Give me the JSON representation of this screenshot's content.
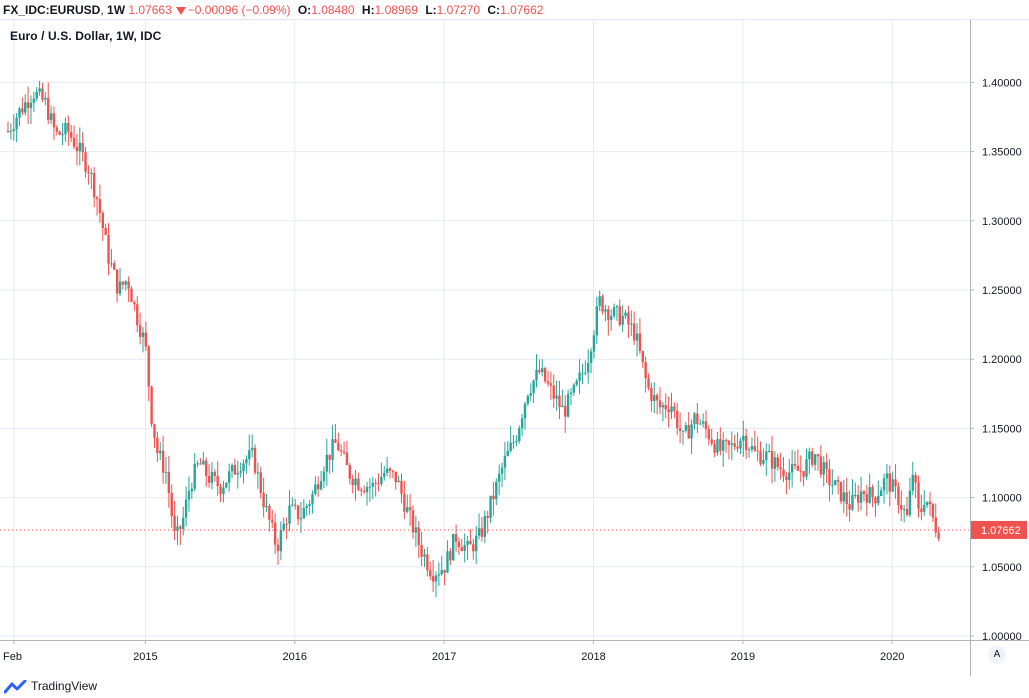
{
  "header": {
    "symbol": "FX_IDC:EURUSD",
    "interval": "1W",
    "last": "1.07663",
    "change": "−0.00096 (−0.09%)",
    "open_label": "O:",
    "open": "1.08480",
    "high_label": "H:",
    "high": "1.08969",
    "low_label": "L:",
    "low": "1.07270",
    "close_label": "C:",
    "close": "1.07662"
  },
  "footer": {
    "brand": "TradingView"
  },
  "auto_button": "A",
  "colors": {
    "up": "#26a69a",
    "down": "#ef5350",
    "grid": "#e6eaf0",
    "axis_text": "#131722"
  },
  "chart_data": {
    "type": "candlestick",
    "title": "Euro / U.S. Dollar, 1W, IDC",
    "ylim": [
      1.0,
      1.44
    ],
    "y_ticks": [
      "1.00000",
      "1.05000",
      "1.10000",
      "1.15000",
      "1.20000",
      "1.25000",
      "1.30000",
      "1.35000",
      "1.40000"
    ],
    "x_ticks": [
      "Feb",
      "2015",
      "2016",
      "2017",
      "2018",
      "2019",
      "2020"
    ],
    "x_tick_years": [
      2014.12,
      2015.0,
      2016.0,
      2017.0,
      2018.0,
      2019.0,
      2020.0
    ],
    "x_range": [
      2014.08,
      2020.32
    ],
    "last_price_label": "1.07662",
    "last_price": 1.07662,
    "weekly_close_path": [
      [
        2014.08,
        1.365
      ],
      [
        2014.15,
        1.378
      ],
      [
        2014.25,
        1.393
      ],
      [
        2014.33,
        1.385
      ],
      [
        2014.4,
        1.362
      ],
      [
        2014.48,
        1.365
      ],
      [
        2014.55,
        1.352
      ],
      [
        2014.62,
        1.338
      ],
      [
        2014.68,
        1.315
      ],
      [
        2014.75,
        1.275
      ],
      [
        2014.82,
        1.25
      ],
      [
        2014.88,
        1.258
      ],
      [
        2014.94,
        1.232
      ],
      [
        2015.0,
        1.21
      ],
      [
        2015.04,
        1.16
      ],
      [
        2015.08,
        1.133
      ],
      [
        2015.14,
        1.118
      ],
      [
        2015.2,
        1.068
      ],
      [
        2015.25,
        1.083
      ],
      [
        2015.3,
        1.11
      ],
      [
        2015.36,
        1.125
      ],
      [
        2015.42,
        1.115
      ],
      [
        2015.5,
        1.108
      ],
      [
        2015.58,
        1.118
      ],
      [
        2015.64,
        1.126
      ],
      [
        2015.72,
        1.13
      ],
      [
        2015.8,
        1.094
      ],
      [
        2015.88,
        1.064
      ],
      [
        2015.96,
        1.091
      ],
      [
        2016.04,
        1.087
      ],
      [
        2016.12,
        1.102
      ],
      [
        2016.2,
        1.126
      ],
      [
        2016.28,
        1.14
      ],
      [
        2016.36,
        1.118
      ],
      [
        2016.44,
        1.11
      ],
      [
        2016.52,
        1.108
      ],
      [
        2016.6,
        1.118
      ],
      [
        2016.68,
        1.114
      ],
      [
        2016.76,
        1.088
      ],
      [
        2016.84,
        1.064
      ],
      [
        2016.92,
        1.046
      ],
      [
        2017.0,
        1.05
      ],
      [
        2017.08,
        1.072
      ],
      [
        2017.16,
        1.062
      ],
      [
        2017.24,
        1.072
      ],
      [
        2017.32,
        1.098
      ],
      [
        2017.4,
        1.125
      ],
      [
        2017.48,
        1.144
      ],
      [
        2017.56,
        1.178
      ],
      [
        2017.64,
        1.191
      ],
      [
        2017.72,
        1.176
      ],
      [
        2017.8,
        1.162
      ],
      [
        2017.88,
        1.178
      ],
      [
        2017.96,
        1.2
      ],
      [
        2018.04,
        1.242
      ],
      [
        2018.12,
        1.233
      ],
      [
        2018.2,
        1.23
      ],
      [
        2018.28,
        1.218
      ],
      [
        2018.36,
        1.18
      ],
      [
        2018.44,
        1.165
      ],
      [
        2018.52,
        1.168
      ],
      [
        2018.6,
        1.142
      ],
      [
        2018.68,
        1.158
      ],
      [
        2018.76,
        1.148
      ],
      [
        2018.84,
        1.134
      ],
      [
        2018.92,
        1.136
      ],
      [
        2019.0,
        1.145
      ],
      [
        2019.08,
        1.132
      ],
      [
        2019.16,
        1.13
      ],
      [
        2019.24,
        1.122
      ],
      [
        2019.32,
        1.118
      ],
      [
        2019.4,
        1.12
      ],
      [
        2019.48,
        1.132
      ],
      [
        2019.56,
        1.115
      ],
      [
        2019.64,
        1.105
      ],
      [
        2019.72,
        1.094
      ],
      [
        2019.8,
        1.105
      ],
      [
        2019.88,
        1.1
      ],
      [
        2019.96,
        1.114
      ],
      [
        2020.04,
        1.1
      ],
      [
        2020.1,
        1.085
      ],
      [
        2020.14,
        1.12
      ],
      [
        2020.18,
        1.085
      ],
      [
        2020.22,
        1.102
      ],
      [
        2020.27,
        1.085
      ],
      [
        2020.3,
        1.077
      ]
    ]
  }
}
